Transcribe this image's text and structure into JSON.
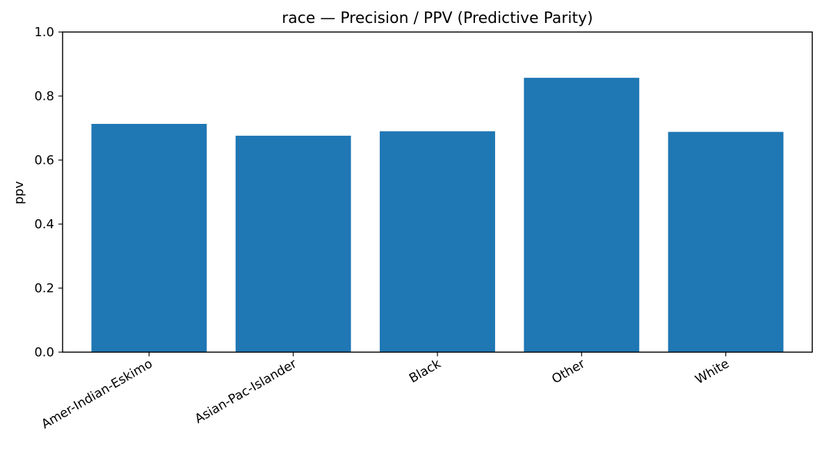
{
  "chart_data": {
    "type": "bar",
    "title": "race — Precision / PPV (Predictive Parity)",
    "xlabel": "",
    "ylabel": "ppv",
    "categories": [
      "Amer-Indian-Eskimo",
      "Asian-Pac-Islander",
      "Black",
      "Other",
      "White"
    ],
    "values": [
      0.713,
      0.676,
      0.69,
      0.857,
      0.688
    ],
    "ylim": [
      0,
      1.0
    ],
    "yticks": [
      "0.0",
      "0.2",
      "0.4",
      "0.6",
      "0.8",
      "1.0"
    ],
    "ytick_values": [
      0,
      0.2,
      0.4,
      0.6,
      0.8,
      1.0
    ],
    "bar_color": "#1f77b4",
    "grid": false,
    "legend": "none"
  }
}
